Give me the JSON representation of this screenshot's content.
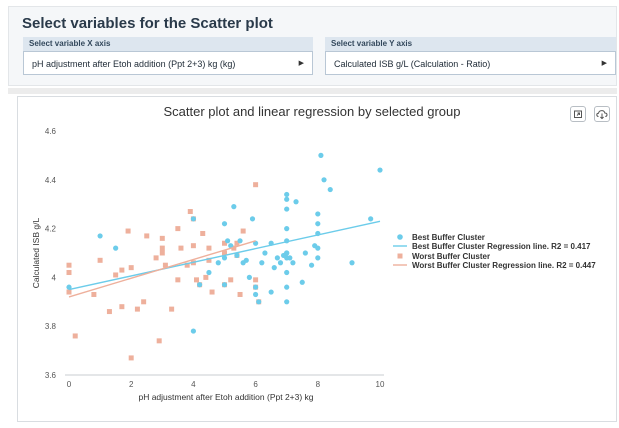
{
  "panel": {
    "title": "Select variables for the Scatter plot"
  },
  "selector_x": {
    "label": "Select variable X axis",
    "value": "pH adjustment after Etoh addition (Ppt 2+3) kg (kg)"
  },
  "selector_y": {
    "label": "Select variable Y axis",
    "value": "Calculated ISB g/L (Calculation - Ratio)"
  },
  "toolbar": {
    "icons": [
      "fullscreen-icon",
      "download-cloud-icon"
    ]
  },
  "colors": {
    "best": "#6cccea",
    "worst": "#eeb09c"
  },
  "chart_data": {
    "type": "scatter",
    "title": "Scatter plot and linear regression by selected group",
    "xlabel": "pH adjustment after Etoh addition (Ppt 2+3) kg",
    "ylabel": "Calculated ISB g/L",
    "xlim": [
      0,
      10
    ],
    "ylim": [
      3.6,
      4.6
    ],
    "x_ticks": [
      "0",
      "2",
      "4",
      "6",
      "8",
      "10"
    ],
    "y_ticks": [
      "3.6",
      "3.8",
      "4",
      "4.2",
      "4.4",
      "4.6"
    ],
    "grid": false,
    "legend_position": "right",
    "series": [
      {
        "name": "Best Buffer Cluster",
        "kind": "points",
        "color": "#6cccea",
        "x": [
          0,
          1,
          1.5,
          4,
          4,
          4.2,
          4.5,
          4.8,
          5,
          5,
          5,
          5.1,
          5.2,
          5.3,
          5.4,
          5.5,
          5.6,
          5.7,
          5.8,
          5.9,
          6,
          6,
          6,
          6.1,
          6.2,
          6.3,
          6.5,
          6.5,
          6.6,
          6.7,
          6.8,
          6.9,
          7,
          7,
          7,
          7,
          7,
          7,
          7,
          7,
          7,
          7,
          7,
          7.1,
          7.2,
          7.3,
          7.5,
          7.6,
          7.8,
          7.9,
          8,
          8,
          8,
          8,
          8,
          8.1,
          8.2,
          8.4,
          9.1,
          9.7,
          10
        ],
        "y": [
          3.96,
          4.17,
          4.12,
          4.24,
          3.78,
          3.97,
          4.02,
          4.06,
          4.08,
          3.97,
          4.22,
          4.15,
          4.13,
          4.29,
          4.09,
          4.15,
          4.06,
          4.07,
          4.0,
          4.24,
          4.14,
          3.96,
          3.93,
          3.9,
          4.06,
          4.1,
          3.94,
          4.14,
          4.04,
          4.08,
          4.06,
          4.09,
          4.34,
          4.32,
          4.28,
          4.2,
          4.15,
          4.08,
          4.1,
          4.02,
          3.96,
          3.9,
          4.1,
          4.08,
          4.06,
          4.31,
          3.98,
          4.1,
          4.05,
          4.13,
          4.08,
          4.12,
          4.18,
          4.26,
          4.22,
          4.5,
          4.4,
          4.36,
          4.06,
          4.24,
          4.44
        ]
      },
      {
        "name": "Best Buffer Cluster Regression line. R2 = 0.417",
        "kind": "line",
        "color": "#6cccea",
        "x": [
          0,
          10
        ],
        "y": [
          3.95,
          4.23
        ]
      },
      {
        "name": "Worst Buffer Cluster",
        "kind": "points",
        "color": "#eeb09c",
        "x": [
          0,
          0,
          0,
          0.2,
          0.8,
          1,
          1.3,
          1.5,
          1.7,
          1.7,
          1.9,
          2,
          2,
          2.2,
          2.4,
          2.5,
          2.8,
          2.9,
          3,
          3,
          3,
          3.1,
          3.3,
          3.5,
          3.5,
          3.6,
          3.8,
          3.9,
          4,
          4,
          4,
          4.1,
          4.2,
          4.3,
          4.4,
          4.5,
          4.5,
          4.6,
          5,
          5,
          5,
          5.2,
          5.3,
          5.4,
          5.4,
          5.5,
          5.6,
          6,
          6,
          6,
          6.1
        ],
        "y": [
          4.05,
          4.02,
          3.94,
          3.76,
          3.93,
          4.07,
          3.86,
          4.01,
          3.88,
          4.03,
          4.19,
          4.04,
          3.67,
          3.87,
          3.9,
          4.17,
          4.08,
          3.74,
          4.12,
          4.16,
          4.1,
          4.05,
          3.87,
          3.99,
          4.2,
          4.12,
          4.05,
          4.27,
          4.24,
          4.13,
          4.06,
          3.99,
          3.97,
          4.18,
          4.0,
          4.12,
          4.07,
          3.94,
          4.14,
          4.1,
          3.97,
          3.99,
          4.12,
          4.09,
          4.14,
          3.93,
          4.19,
          4.38,
          3.99,
          3.96,
          3.9
        ]
      },
      {
        "name": "Worst Buffer Cluster Regression line. R2 = 0.447",
        "kind": "line",
        "color": "#eeb09c",
        "x": [
          0,
          6
        ],
        "y": [
          3.92,
          4.15
        ]
      }
    ]
  }
}
